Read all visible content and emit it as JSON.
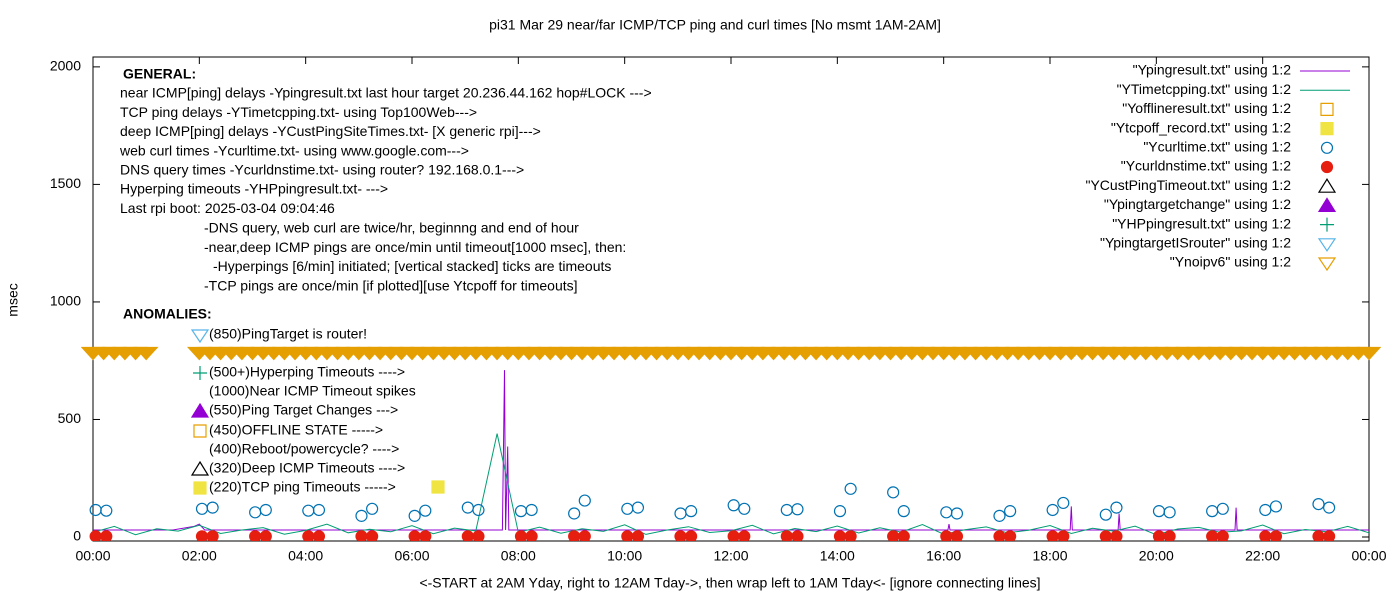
{
  "chart_data": {
    "type": "line",
    "title": "pi31 Mar 29  near/far ICMP/TCP ping and curl times [No msmt 1AM-2AM]",
    "xlabel": "<-START at 2AM Yday, right to 12AM Tday->, then wrap left to 1AM Tday<- [ignore connecting lines]",
    "ylabel": "msec",
    "xlim": [
      0,
      24
    ],
    "ylim": [
      -17,
      2042
    ],
    "xticks": [
      {
        "value": 0,
        "label": "00:00"
      },
      {
        "value": 2,
        "label": "02:00"
      },
      {
        "value": 4,
        "label": "04:00"
      },
      {
        "value": 6,
        "label": "06:00"
      },
      {
        "value": 8,
        "label": "08:00"
      },
      {
        "value": 10,
        "label": "10:00"
      },
      {
        "value": 12,
        "label": "12:00"
      },
      {
        "value": 14,
        "label": "14:00"
      },
      {
        "value": 16,
        "label": "16:00"
      },
      {
        "value": 18,
        "label": "18:00"
      },
      {
        "value": 20,
        "label": "20:00"
      },
      {
        "value": 22,
        "label": "22:00"
      },
      {
        "value": 24,
        "label": "00:00"
      }
    ],
    "yticks": [
      0,
      500,
      1000,
      1500,
      2000
    ],
    "grid": false,
    "legend": "top right",
    "annotations": {
      "general_title": "GENERAL:",
      "general": [
        "near ICMP[ping] delays -Ypingresult.txt last hour target 20.236.44.162 hop#LOCK --->",
        "TCP ping delays -YTimetcpping.txt- using Top100Web--->",
        "deep ICMP[ping] delays -YCustPingSiteTimes.txt- [X generic rpi]--->",
        "web curl times -Ycurltime.txt- using www.google.com--->",
        "DNS query times -Ycurldnstime.txt- using router? 192.168.0.1--->",
        "Hyperping timeouts -YHPpingresult.txt- --->",
        "Last rpi boot: 2025-03-04 09:04:46"
      ],
      "notes": [
        "-DNS query, web curl are twice/hr, beginnng and end of hour",
        "-near,deep ICMP pings are once/min until timeout[1000 msec], then:",
        "-Hyperpings [6/min] initiated; [vertical stacked] ticks are timeouts",
        "-TCP pings are once/min [if plotted][use Ytcpoff for timeouts]"
      ],
      "anomalies_title": "ANOMALIES:",
      "anomalies": [
        "(850)PingTarget is router!",
        "(500+)Hyperping Timeouts ---->",
        "(1000)Near ICMP Timeout spikes",
        "(550)Ping Target Changes --->",
        "(450)OFFLINE STATE ----->",
        "(400)Reboot/powercycle? ---->",
        "(320)Deep ICMP Timeouts ---->",
        "(220)TCP ping Timeouts ----->"
      ]
    },
    "series": [
      {
        "name": "\"Ypingresult.txt\" using 1:2",
        "color": "#9400d3",
        "style": "line",
        "x": [
          0,
          1.5,
          1.9,
          2.0,
          2.1,
          4,
          6,
          7.7,
          7.74,
          7.76,
          7.8,
          7.82,
          7.85,
          10,
          12,
          14,
          16.08,
          16.1,
          16.12,
          18.38,
          18.4,
          18.42,
          19.28,
          19.3,
          19.32,
          21.48,
          21.5,
          21.52,
          24
        ],
        "values": [
          30,
          30,
          45,
          55,
          30,
          30,
          30,
          30,
          710,
          30,
          385,
          30,
          30,
          30,
          30,
          30,
          30,
          55,
          30,
          30,
          130,
          30,
          30,
          100,
          30,
          30,
          125,
          30,
          30
        ]
      },
      {
        "name": "\"YTimetcpping.txt\" using 1:2",
        "color": "#009e73",
        "style": "line",
        "x": [
          0,
          0.4,
          0.8,
          1.2,
          1.6,
          2,
          2.4,
          2.8,
          3.2,
          3.6,
          4,
          4.4,
          4.8,
          5.2,
          5.6,
          6,
          6.4,
          6.8,
          7.2,
          7.6,
          8,
          8.4,
          8.8,
          9.2,
          9.6,
          10,
          10.4,
          10.8,
          11.2,
          11.6,
          12,
          12.4,
          12.8,
          13.2,
          13.6,
          14,
          14.4,
          14.8,
          15.2,
          15.6,
          16,
          16.4,
          16.8,
          17.2,
          17.6,
          18,
          18.4,
          18.8,
          19.2,
          19.6,
          20,
          20.4,
          20.8,
          21.2,
          21.6,
          22,
          22.4,
          22.8,
          23.2,
          23.6,
          24
        ],
        "values": [
          20,
          45,
          10,
          35,
          25,
          50,
          15,
          30,
          40,
          12,
          28,
          55,
          18,
          33,
          22,
          48,
          14,
          38,
          26,
          440,
          20,
          42,
          16,
          35,
          24,
          52,
          11,
          30,
          44,
          19,
          27,
          50,
          13,
          36,
          23,
          47,
          17,
          39,
          21,
          53,
          12,
          31,
          43,
          18,
          29,
          49,
          15,
          37,
          25,
          46,
          10,
          34,
          41,
          20,
          26,
          51,
          14,
          32,
          22,
          45,
          18
        ]
      },
      {
        "name": "\"Yofflineresult.txt\" using 1:2",
        "color": "#e69f00",
        "style": "points",
        "marker": "square-open",
        "x": [],
        "values": []
      },
      {
        "name": "\"Ytcpoff_record.txt\" using 1:2",
        "color": "#f0e442",
        "style": "points",
        "marker": "square-filled",
        "x": [],
        "values": []
      },
      {
        "name": "\"Ycurltime.txt\" using 1:2",
        "color": "#0072b2",
        "style": "points",
        "marker": "circle-open",
        "x": [
          0.05,
          0.25,
          2.05,
          2.25,
          3.05,
          3.25,
          4.05,
          4.25,
          5.05,
          5.25,
          6.05,
          6.25,
          7.05,
          7.25,
          8.05,
          8.25,
          9.05,
          9.25,
          10.05,
          10.25,
          11.05,
          11.25,
          12.05,
          12.25,
          13.05,
          13.25,
          14.05,
          14.25,
          15.05,
          15.25,
          16.05,
          16.25,
          17.05,
          17.25,
          18.05,
          18.25,
          19.05,
          19.25,
          20.05,
          20.25,
          21.05,
          21.25,
          22.05,
          22.25,
          23.05,
          23.25
        ],
        "values": [
          115,
          112,
          120,
          125,
          105,
          115,
          112,
          115,
          90,
          120,
          90,
          112,
          125,
          115,
          110,
          115,
          100,
          155,
          120,
          125,
          100,
          110,
          135,
          120,
          115,
          118,
          110,
          205,
          190,
          110,
          105,
          100,
          90,
          110,
          115,
          145,
          95,
          125,
          110,
          105,
          110,
          120,
          115,
          130,
          140,
          125
        ]
      },
      {
        "name": "\"Ycurldnstime.txt\" using 1:2",
        "color": "#e51e10",
        "style": "points",
        "marker": "circle-filled",
        "x": [
          0.05,
          0.25,
          2.05,
          2.25,
          3.05,
          3.25,
          4.05,
          4.25,
          5.05,
          5.25,
          6.05,
          6.25,
          7.05,
          7.25,
          8.05,
          8.25,
          9.05,
          9.25,
          10.05,
          10.25,
          11.05,
          11.25,
          12.05,
          12.25,
          13.05,
          13.25,
          14.05,
          14.25,
          15.05,
          15.25,
          16.05,
          16.25,
          17.05,
          17.25,
          18.05,
          18.25,
          19.05,
          19.25,
          20.05,
          20.25,
          21.05,
          21.25,
          22.05,
          22.25,
          23.05,
          23.25
        ],
        "values": [
          3,
          3,
          3,
          3,
          3,
          3,
          3,
          3,
          3,
          3,
          3,
          3,
          3,
          3,
          3,
          3,
          3,
          3,
          3,
          3,
          3,
          3,
          3,
          3,
          3,
          3,
          3,
          3,
          3,
          3,
          3,
          3,
          3,
          3,
          3,
          3,
          3,
          3,
          3,
          3,
          3,
          3,
          3,
          3,
          3,
          3
        ]
      },
      {
        "name": "\"YCustPingTimeout.txt\" using 1:2",
        "color": "#000000",
        "style": "points",
        "marker": "triangle-up-open",
        "x": [],
        "values": []
      },
      {
        "name": "\"Ypingtargetchange\" using 1:2",
        "color": "#9400d3",
        "style": "points",
        "marker": "triangle-up-filled",
        "x": [],
        "values": []
      },
      {
        "name": "\"YHPpingresult.txt\" using 1:2",
        "color": "#009e73",
        "style": "points",
        "marker": "plus",
        "x": [],
        "values": []
      },
      {
        "name": "\"YpingtargetISrouter\" using 1:2",
        "color": "#56b4e9",
        "style": "points",
        "marker": "triangle-down-open",
        "x": [],
        "values": []
      },
      {
        "name": "\"Ynoipv6\" using 1:2",
        "color": "#e69f00",
        "style": "points",
        "marker": "triangle-down-open",
        "x": [
          0,
          0.2,
          0.4,
          0.6,
          0.8,
          1,
          2,
          2.2,
          2.4,
          2.6,
          2.8,
          3,
          3.2,
          3.4,
          3.6,
          3.8,
          4,
          4.2,
          4.4,
          4.6,
          4.8,
          5,
          5.2,
          5.4,
          5.6,
          5.8,
          6,
          6.2,
          6.4,
          6.6,
          6.8,
          7,
          7.2,
          7.4,
          7.6,
          7.8,
          8,
          8.2,
          8.4,
          8.6,
          8.8,
          9,
          9.2,
          9.4,
          9.6,
          9.8,
          10,
          10.2,
          10.4,
          10.6,
          10.8,
          11,
          11.2,
          11.4,
          11.6,
          11.8,
          12,
          12.2,
          12.4,
          12.6,
          12.8,
          13,
          13.2,
          13.4,
          13.6,
          13.8,
          14,
          14.2,
          14.4,
          14.6,
          14.8,
          15,
          15.2,
          15.4,
          15.6,
          15.8,
          16,
          16.2,
          16.4,
          16.6,
          16.8,
          17,
          17.2,
          17.4,
          17.6,
          17.8,
          18,
          18.2,
          18.4,
          18.6,
          18.8,
          19,
          19.2,
          19.4,
          19.6,
          19.8,
          20,
          20.2,
          20.4,
          20.6,
          20.8,
          21,
          21.2,
          21.4,
          21.6,
          21.8,
          22,
          22.2,
          22.4,
          22.6,
          22.8,
          23,
          23.2,
          23.4,
          23.6,
          23.8,
          24
        ],
        "values": [
          785,
          785,
          785,
          785,
          785,
          785,
          785,
          785,
          785,
          785,
          785,
          785,
          785,
          785,
          785,
          785,
          785,
          785,
          785,
          785,
          785,
          785,
          785,
          785,
          785,
          785,
          785,
          785,
          785,
          785,
          785,
          785,
          785,
          785,
          785,
          785,
          785,
          785,
          785,
          785,
          785,
          785,
          785,
          785,
          785,
          785,
          785,
          785,
          785,
          785,
          785,
          785,
          785,
          785,
          785,
          785,
          785,
          785,
          785,
          785,
          785,
          785,
          785,
          785,
          785,
          785,
          785,
          785,
          785,
          785,
          785,
          785,
          785,
          785,
          785,
          785,
          785,
          785,
          785,
          785,
          785,
          785,
          785,
          785,
          785,
          785,
          785,
          785,
          785,
          785,
          785,
          785,
          785,
          785,
          785,
          785,
          785,
          785,
          785,
          785,
          785,
          785,
          785,
          785,
          785,
          785,
          785,
          785,
          785,
          785,
          785,
          785,
          785,
          785,
          785,
          785,
          785
        ]
      }
    ]
  }
}
